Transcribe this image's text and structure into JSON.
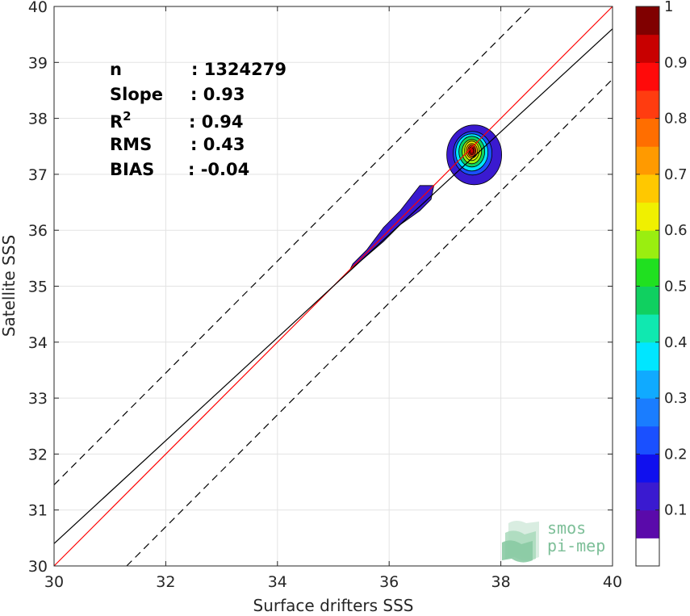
{
  "chart_data": {
    "type": "scatter",
    "subtype": "density-contour",
    "xlabel": "Surface drifters SSS",
    "ylabel": "Satellite SSS",
    "xlim": [
      30,
      40
    ],
    "ylim": [
      30,
      40
    ],
    "xticks": [
      30,
      32,
      34,
      36,
      38,
      40
    ],
    "yticks": [
      30,
      31,
      32,
      33,
      34,
      35,
      36,
      37,
      38,
      39,
      40
    ],
    "grid": true,
    "stats": [
      {
        "name": "n",
        "value": ": 1324279"
      },
      {
        "name": "Slope",
        "value": ": 0.93"
      },
      {
        "name": "R",
        "sup": "2",
        "value": ": 0.94"
      },
      {
        "name": "RMS",
        "value": ": 0.43"
      },
      {
        "name": "BIAS",
        "value": ": -0.04"
      }
    ],
    "lines": [
      {
        "role": "identity",
        "color": "#ff0000",
        "style": "solid",
        "slope": 1,
        "intercept": 0
      },
      {
        "role": "regression",
        "color": "#000000",
        "style": "solid",
        "points": [
          [
            30,
            30.4
          ],
          [
            40,
            39.6
          ]
        ]
      },
      {
        "role": "upper-bound",
        "color": "#000000",
        "style": "dashed",
        "slope": 1,
        "intercept": 1.45
      },
      {
        "role": "lower-bound",
        "color": "#000000",
        "style": "dashed",
        "slope": 1,
        "intercept": -1.3
      }
    ],
    "density_core": {
      "x": 37.48,
      "y": 37.42
    },
    "colorbar": {
      "min": 0,
      "max": 1,
      "ticks": [
        "0.1",
        "0.2",
        "0.3",
        "0.4",
        "0.5",
        "0.6",
        "0.7",
        "0.8",
        "0.9",
        "1"
      ],
      "colors": [
        "#ffffff",
        "#5a0aaa",
        "#3a1ad0",
        "#1010ee",
        "#1a50ff",
        "#1a7dff",
        "#10aaff",
        "#00e6ff",
        "#10e8b0",
        "#10d060",
        "#20e020",
        "#9aee10",
        "#f0f000",
        "#ffc800",
        "#ff9a00",
        "#ff6e00",
        "#ff3c10",
        "#ff0a0a",
        "#c80000",
        "#800000"
      ]
    }
  },
  "logo": {
    "line1": "smos",
    "line2": "pi-mep"
  }
}
